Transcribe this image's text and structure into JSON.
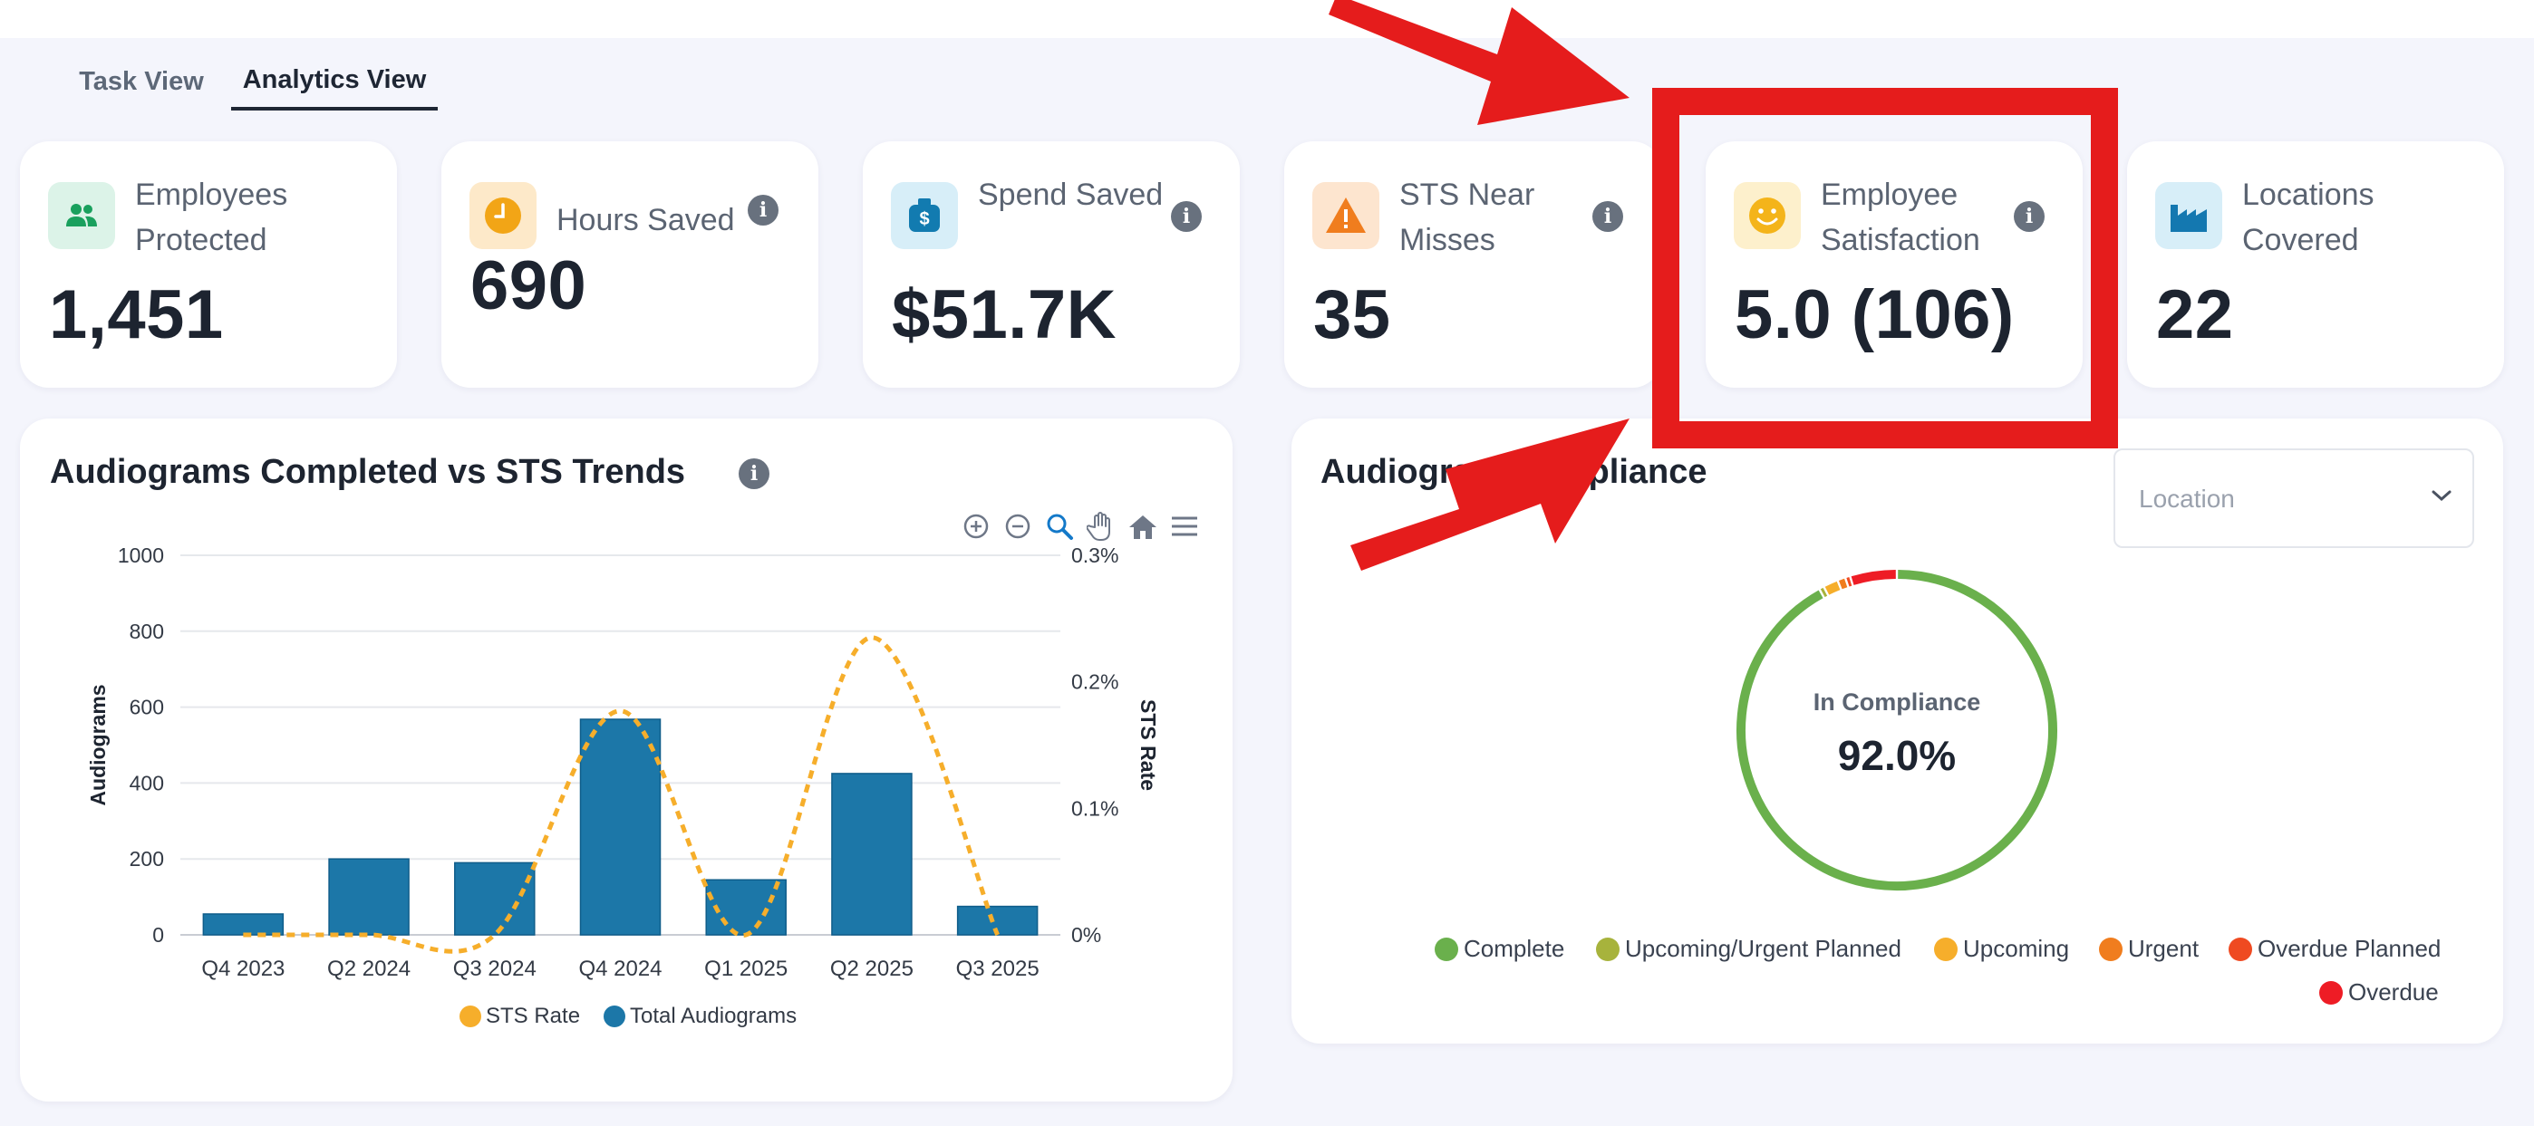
{
  "tabs": [
    {
      "label": "Task View",
      "active": false
    },
    {
      "label": "Analytics View",
      "active": true
    }
  ],
  "kpis": [
    {
      "title": "Employees Protected",
      "value": "1,451",
      "icon": "people-icon",
      "icon_color": "#19a05d",
      "icon_bg": "#dcf3e8",
      "has_info": false
    },
    {
      "title": "Hours Saved",
      "value": "690",
      "icon": "clock-icon",
      "icon_color": "#f2a516",
      "icon_bg": "#fde9c9",
      "has_info": true
    },
    {
      "title": "Spend Saved",
      "value": "$51.7K",
      "icon": "money-bag-icon",
      "icon_color": "#127bb0",
      "icon_bg": "#d7eef8",
      "has_info": true
    },
    {
      "title": "STS Near Misses",
      "value": "35",
      "icon": "warning-icon",
      "icon_color": "#f07d1e",
      "icon_bg": "#fde5cf",
      "has_info": true
    },
    {
      "title": "Employee Satisfaction",
      "value": "5.0 (106)",
      "icon": "smiley-icon",
      "icon_color": "#f4b41a",
      "icon_bg": "#fdf0cc",
      "has_info": true
    },
    {
      "title": "Locations Covered",
      "value": "22",
      "icon": "factory-icon",
      "icon_color": "#1478b0",
      "icon_bg": "#d7eef8",
      "has_info": false
    }
  ],
  "chart_card": {
    "title": "Audiograms Completed vs STS Trends",
    "toolbar": [
      "zoom-in-icon",
      "zoom-out-icon",
      "magnifier-icon",
      "pan-hand-icon",
      "home-icon",
      "menu-icon"
    ]
  },
  "chart_data": {
    "type": "bar",
    "categories": [
      "Q4 2023",
      "Q2 2024",
      "Q3 2024",
      "Q4 2024",
      "Q1 2025",
      "Q2 2025",
      "Q3 2025"
    ],
    "series": [
      {
        "name": "Total Audiograms",
        "type": "bar",
        "axis": "left",
        "color": "#1c77a8",
        "values": [
          55,
          200,
          190,
          568,
          145,
          425,
          75
        ]
      },
      {
        "name": "STS Rate",
        "type": "line",
        "style": "dotted",
        "axis": "right",
        "color": "#f6ae2b",
        "values": [
          0,
          0,
          0,
          0.177,
          0,
          0.235,
          0
        ]
      }
    ],
    "ylabel": "Audiograms",
    "y2label": "STS Rate",
    "ylim": [
      0,
      1000
    ],
    "yticks": [
      "0",
      "200",
      "400",
      "600",
      "800",
      "1000"
    ],
    "y2lim": [
      0,
      0.3
    ],
    "y2ticks": [
      "0%",
      "0.1%",
      "0.2%",
      "0.3%"
    ],
    "legend": [
      "STS Rate",
      "Total Audiograms"
    ],
    "legend_position": "bottom-center",
    "grid": true
  },
  "compliance": {
    "title": "Audiogram Compliance",
    "location_placeholder": "Location",
    "center_label": "In Compliance",
    "center_value": "92.0%",
    "donut": [
      {
        "name": "Complete",
        "value": 92.0,
        "color": "#6ab04c"
      },
      {
        "name": "Upcoming/Urgent Planned",
        "value": 0.5,
        "color": "#a7b33c"
      },
      {
        "name": "Upcoming",
        "value": 1.5,
        "color": "#f6ae2b"
      },
      {
        "name": "Urgent",
        "value": 0.8,
        "color": "#f07d1e"
      },
      {
        "name": "Overdue Planned",
        "value": 0.5,
        "color": "#ef4a21"
      },
      {
        "name": "Overdue",
        "value": 4.7,
        "color": "#ee1c25"
      }
    ]
  },
  "annotation": {
    "color": "#e51c1c"
  }
}
